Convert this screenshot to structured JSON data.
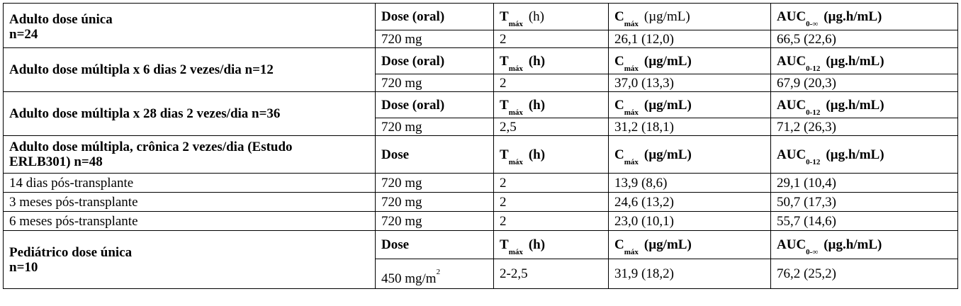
{
  "groups": [
    {
      "title_line1": "Adulto dose única",
      "title_line2": "n=24",
      "header": {
        "dose": "Dose (oral)",
        "t": "T",
        "t_sub": "máx",
        "t_unit": "(h)",
        "c": "C",
        "c_sub": "máx",
        "c_unit": "(µg/mL)",
        "auc": "AUC",
        "auc_sub": "0-∞",
        "auc_unit": "(µg.h/mL)"
      },
      "rows": [
        {
          "label": "",
          "dose": "720 mg",
          "tmax": "2",
          "cmax": "26,1 (12,0)",
          "auc": "66,5 (22,6)"
        }
      ]
    },
    {
      "title_line1": "Adulto dose múltipla x 6 dias 2 vezes/dia n=12",
      "header": {
        "dose": "Dose (oral)",
        "t": "T",
        "t_sub": "máx",
        "t_unit": "(h)",
        "c": "C",
        "c_sub": "máx",
        "c_unit": "(µg/mL)",
        "auc": "AUC",
        "auc_sub": "0-12",
        "auc_unit": "(µg.h/mL)"
      },
      "rows": [
        {
          "label": "",
          "dose": "720 mg",
          "tmax": "2",
          "cmax": "37,0 (13,3)",
          "auc": "67,9 (20,3)"
        }
      ]
    },
    {
      "title_line1": "Adulto dose múltipla x 28 dias 2 vezes/dia n=36",
      "header": {
        "dose": "Dose (oral)",
        "t": "T",
        "t_sub": "máx",
        "t_unit": "(h)",
        "c": "C",
        "c_sub": "máx",
        "c_unit": "(µg/mL)",
        "auc": "AUC",
        "auc_sub": "0-12",
        "auc_unit": "(µg.h/mL)"
      },
      "rows": [
        {
          "label": "",
          "dose": "720 mg",
          "tmax": "2,5",
          "cmax": "31,2 (18,1)",
          "auc": "71,2 (26,3)"
        }
      ]
    },
    {
      "title_line1": "Adulto dose múltipla, crônica 2 vezes/dia (Estudo",
      "title_line2": "ERLB301) n=48",
      "header": {
        "dose": "Dose",
        "t": "T",
        "t_sub": "máx",
        "t_unit": "(h)",
        "c": "C",
        "c_sub": "máx",
        "c_unit": "(µg/mL)",
        "auc": "AUC",
        "auc_sub": "0-12",
        "auc_unit": "(µg.h/mL)"
      },
      "rows": [
        {
          "label": "14 dias pós-transplante",
          "dose": "720 mg",
          "tmax": "2",
          "cmax": "13,9 (8,6)",
          "auc": "29,1 (10,4)"
        },
        {
          "label": "3 meses pós-transplante",
          "dose": "720 mg",
          "tmax": "2",
          "cmax": "24,6 (13,2)",
          "auc": "50,7 (17,3)"
        },
        {
          "label": "6 meses pós-transplante",
          "dose": "720 mg",
          "tmax": "2",
          "cmax": "23,0 (10,1)",
          "auc": "55,7 (14,6)"
        }
      ]
    },
    {
      "title_line1": "Pediátrico dose única",
      "title_line2": "n=10",
      "header": {
        "dose": "Dose",
        "t": "T",
        "t_sub": "máx",
        "t_unit": "(h)",
        "c": "C",
        "c_sub": "máx",
        "c_unit": "(µg/mL)",
        "auc": "AUC",
        "auc_sub": "0-∞",
        "auc_unit": "(µg.h/mL)"
      },
      "rows": [
        {
          "label": "",
          "dose": "450 mg/m",
          "dose_sup": "2",
          "tmax": "2-2,5",
          "cmax": "31,9 (18,2)",
          "auc": "76,2 (25,2)"
        }
      ]
    }
  ]
}
